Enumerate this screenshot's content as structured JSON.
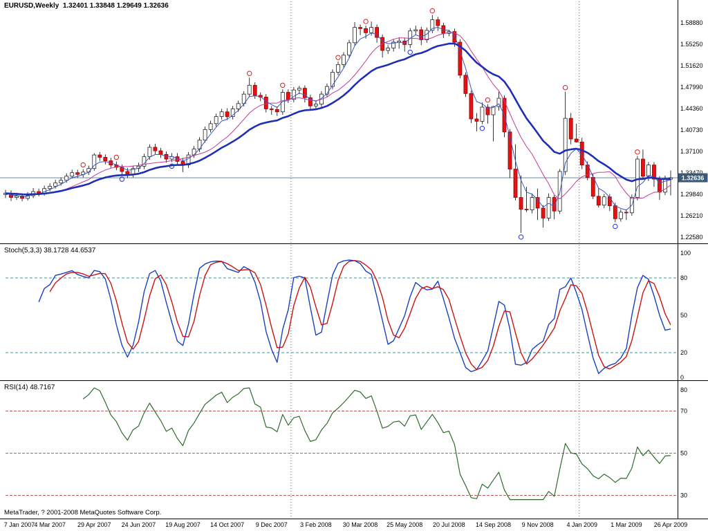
{
  "panels": {
    "main": {
      "title": "EURUSD,Weekly  1.32401 1.33848 1.29649 1.32636"
    },
    "stoch": {
      "title": "Stoch(5,3,3) 38.1728 44.6537"
    },
    "rsi": {
      "title": "RSI(14) 48.7167"
    }
  },
  "footer": {
    "copyright": "MetaTrader, ? 2001-2008 MetaQuotes Software Corp."
  },
  "colors": {
    "bull_body": "#ffffff",
    "bull_outline": "#222222",
    "bear_body": "#e81010",
    "bear_outline": "#990000",
    "wick": "#000000",
    "current_price_line": "#5b8cae",
    "price_badge_bg": "#3a5a78",
    "price_badge_text": "#ffffff",
    "separator": "#666666",
    "stoch_main": "#1a3fc4",
    "stoch_signal": "#cc1111",
    "stoch_level": "#2e9e9e",
    "rsi_line": "#2d6b2d",
    "rsi_level": "#bb6060"
  },
  "chart_data": [
    {
      "type": "candlestick",
      "title": "EURUSD,Weekly",
      "current_bar": {
        "open": 1.32401,
        "high": 1.33848,
        "low": 1.29649,
        "close": 1.32636
      },
      "ylim": [
        1.2152,
        1.6274
      ],
      "y_tick_labels": [
        "1.58880",
        "1.55250",
        "1.51620",
        "1.47990",
        "1.44360",
        "1.40730",
        "1.37100",
        "1.33470",
        "1.29840",
        "1.26210",
        "1.22580"
      ],
      "x_tick_labels": [
        "7 Jan 2007",
        "4 Mar 2007",
        "29 Apr 2007",
        "24 Jun 2007",
        "19 Aug 2007",
        "14 Oct 2007",
        "9 Dec 2007",
        "3 Feb 2008",
        "30 Mar 2008",
        "25 May 2008",
        "20 Jul 2008",
        "14 Sep 2008",
        "9 Nov 2008",
        "4 Jan 2009",
        "1 Mar 2009",
        "26 Apr 2009"
      ],
      "current_price_line": {
        "value": 1.32636,
        "label": "1.32636"
      },
      "separators_at_index": [
        51.5,
        103.5
      ],
      "overlays": [
        {
          "name": "ma-fast",
          "type": "ema",
          "period": 4,
          "color": "#3a56c8",
          "width": 1
        },
        {
          "name": "ma-mid",
          "type": "sma",
          "period": 10,
          "color": "#c23a96",
          "width": 1
        },
        {
          "name": "ma-slow",
          "type": "ema",
          "period": 21,
          "color": "#1e2fb5",
          "width": 2.6
        }
      ],
      "markers": {
        "above": [
          14,
          20,
          44,
          50,
          60,
          65,
          77,
          87,
          101,
          114
        ],
        "below": [
          21,
          30,
          73,
          86,
          93,
          110
        ],
        "above_color": "#cc2222",
        "below_color": "#2233cc"
      },
      "candles": [
        [
          1.298,
          1.306,
          1.292,
          1.3
        ],
        [
          1.3,
          1.305,
          1.287,
          1.293
        ],
        [
          1.293,
          1.301,
          1.289,
          1.2955
        ],
        [
          1.2955,
          1.3,
          1.2865,
          1.2915
        ],
        [
          1.2915,
          1.302,
          1.288,
          1.296
        ],
        [
          1.296,
          1.309,
          1.292,
          1.303
        ],
        [
          1.303,
          1.308,
          1.295,
          1.3
        ],
        [
          1.3,
          1.313,
          1.296,
          1.308
        ],
        [
          1.308,
          1.317,
          1.303,
          1.312
        ],
        [
          1.312,
          1.323,
          1.308,
          1.3175
        ],
        [
          1.3175,
          1.327,
          1.313,
          1.322
        ],
        [
          1.322,
          1.334,
          1.318,
          1.329
        ],
        [
          1.329,
          1.34,
          1.325,
          1.335
        ],
        [
          1.335,
          1.34,
          1.326,
          1.332
        ],
        [
          1.332,
          1.341,
          1.327,
          1.336
        ],
        [
          1.336,
          1.347,
          1.331,
          1.342
        ],
        [
          1.342,
          1.368,
          1.338,
          1.365
        ],
        [
          1.365,
          1.37,
          1.355,
          1.361
        ],
        [
          1.361,
          1.366,
          1.349,
          1.355
        ],
        [
          1.355,
          1.36,
          1.343,
          1.348
        ],
        [
          1.348,
          1.354,
          1.339,
          1.344
        ],
        [
          1.344,
          1.349,
          1.331,
          1.337
        ],
        [
          1.337,
          1.343,
          1.326,
          1.332
        ],
        [
          1.332,
          1.347,
          1.327,
          1.342
        ],
        [
          1.342,
          1.352,
          1.336,
          1.346
        ],
        [
          1.346,
          1.367,
          1.341,
          1.362
        ],
        [
          1.362,
          1.383,
          1.357,
          1.378
        ],
        [
          1.378,
          1.384,
          1.366,
          1.372
        ],
        [
          1.372,
          1.377,
          1.36,
          1.366
        ],
        [
          1.366,
          1.371,
          1.352,
          1.358
        ],
        [
          1.358,
          1.368,
          1.353,
          1.362
        ],
        [
          1.362,
          1.368,
          1.348,
          1.354
        ],
        [
          1.354,
          1.36,
          1.336,
          1.348
        ],
        [
          1.348,
          1.37,
          1.343,
          1.365
        ],
        [
          1.365,
          1.38,
          1.36,
          1.375
        ],
        [
          1.375,
          1.395,
          1.37,
          1.39
        ],
        [
          1.39,
          1.413,
          1.386,
          1.408
        ],
        [
          1.408,
          1.423,
          1.403,
          1.418
        ],
        [
          1.418,
          1.435,
          1.413,
          1.43
        ],
        [
          1.43,
          1.443,
          1.425,
          1.438
        ],
        [
          1.438,
          1.444,
          1.424,
          1.43
        ],
        [
          1.43,
          1.448,
          1.425,
          1.443
        ],
        [
          1.443,
          1.457,
          1.438,
          1.452
        ],
        [
          1.452,
          1.473,
          1.447,
          1.468
        ],
        [
          1.468,
          1.496,
          1.463,
          1.483
        ],
        [
          1.483,
          1.488,
          1.46,
          1.466
        ],
        [
          1.466,
          1.471,
          1.456,
          1.463
        ],
        [
          1.463,
          1.468,
          1.437,
          1.443
        ],
        [
          1.443,
          1.448,
          1.433,
          1.442
        ],
        [
          1.442,
          1.447,
          1.431,
          1.438
        ],
        [
          1.438,
          1.476,
          1.433,
          1.471
        ],
        [
          1.471,
          1.476,
          1.453,
          1.459
        ],
        [
          1.459,
          1.48,
          1.454,
          1.475
        ],
        [
          1.475,
          1.482,
          1.468,
          1.478
        ],
        [
          1.478,
          1.483,
          1.454,
          1.462
        ],
        [
          1.462,
          1.467,
          1.44,
          1.448
        ],
        [
          1.448,
          1.456,
          1.443,
          1.451
        ],
        [
          1.451,
          1.473,
          1.446,
          1.468
        ],
        [
          1.468,
          1.486,
          1.463,
          1.481
        ],
        [
          1.481,
          1.51,
          1.476,
          1.505
        ],
        [
          1.505,
          1.523,
          1.5,
          1.518
        ],
        [
          1.518,
          1.539,
          1.513,
          1.534
        ],
        [
          1.534,
          1.56,
          1.529,
          1.555
        ],
        [
          1.555,
          1.59,
          1.55,
          1.581
        ],
        [
          1.581,
          1.586,
          1.568,
          1.579
        ],
        [
          1.579,
          1.584,
          1.562,
          1.572
        ],
        [
          1.572,
          1.591,
          1.567,
          1.581
        ],
        [
          1.581,
          1.586,
          1.555,
          1.564
        ],
        [
          1.564,
          1.569,
          1.53,
          1.542
        ],
        [
          1.542,
          1.551,
          1.536,
          1.546
        ],
        [
          1.546,
          1.561,
          1.54,
          1.556
        ],
        [
          1.556,
          1.564,
          1.545,
          1.558
        ],
        [
          1.558,
          1.563,
          1.54,
          1.552
        ],
        [
          1.552,
          1.58,
          1.546,
          1.575
        ],
        [
          1.575,
          1.584,
          1.568,
          1.577
        ],
        [
          1.577,
          1.582,
          1.551,
          1.56
        ],
        [
          1.56,
          1.581,
          1.555,
          1.576
        ],
        [
          1.576,
          1.602,
          1.571,
          1.594
        ],
        [
          1.594,
          1.599,
          1.575,
          1.584
        ],
        [
          1.584,
          1.589,
          1.563,
          1.571
        ],
        [
          1.571,
          1.577,
          1.566,
          1.574
        ],
        [
          1.574,
          1.579,
          1.548,
          1.556
        ],
        [
          1.556,
          1.561,
          1.495,
          1.5
        ],
        [
          1.5,
          1.505,
          1.463,
          1.469
        ],
        [
          1.469,
          1.474,
          1.419,
          1.426
        ],
        [
          1.426,
          1.436,
          1.405,
          1.422
        ],
        [
          1.422,
          1.454,
          1.417,
          1.446
        ],
        [
          1.446,
          1.451,
          1.418,
          1.433
        ],
        [
          1.433,
          1.448,
          1.388,
          1.447
        ],
        [
          1.447,
          1.472,
          1.44,
          1.461
        ],
        [
          1.461,
          1.466,
          1.395,
          1.404
        ],
        [
          1.404,
          1.409,
          1.326,
          1.341
        ],
        [
          1.341,
          1.383,
          1.288,
          1.293
        ],
        [
          1.293,
          1.33,
          1.233,
          1.273
        ],
        [
          1.273,
          1.311,
          1.268,
          1.272
        ],
        [
          1.272,
          1.3,
          1.266,
          1.293
        ],
        [
          1.293,
          1.308,
          1.255,
          1.275
        ],
        [
          1.275,
          1.28,
          1.242,
          1.258
        ],
        [
          1.258,
          1.3,
          1.253,
          1.293
        ],
        [
          1.293,
          1.298,
          1.256,
          1.27
        ],
        [
          1.27,
          1.341,
          1.265,
          1.337
        ],
        [
          1.337,
          1.472,
          1.331,
          1.427
        ],
        [
          1.427,
          1.436,
          1.383,
          1.392
        ],
        [
          1.392,
          1.418,
          1.386,
          1.387
        ],
        [
          1.387,
          1.394,
          1.341,
          1.348
        ],
        [
          1.348,
          1.354,
          1.322,
          1.327
        ],
        [
          1.327,
          1.333,
          1.29,
          1.295
        ],
        [
          1.295,
          1.309,
          1.276,
          1.28
        ],
        [
          1.28,
          1.299,
          1.275,
          1.294
        ],
        [
          1.294,
          1.299,
          1.27,
          1.279
        ],
        [
          1.279,
          1.284,
          1.251,
          1.257
        ],
        [
          1.257,
          1.273,
          1.252,
          1.268
        ],
        [
          1.268,
          1.273,
          1.255,
          1.267
        ],
        [
          1.267,
          1.298,
          1.262,
          1.293
        ],
        [
          1.293,
          1.363,
          1.288,
          1.358
        ],
        [
          1.358,
          1.374,
          1.324,
          1.329
        ],
        [
          1.329,
          1.353,
          1.321,
          1.348
        ],
        [
          1.348,
          1.353,
          1.311,
          1.324
        ],
        [
          1.324,
          1.329,
          1.289,
          1.302
        ],
        [
          1.302,
          1.33,
          1.297,
          1.325
        ],
        [
          1.32401,
          1.33848,
          1.29649,
          1.32636
        ]
      ]
    },
    {
      "type": "line",
      "name": "Stochastic Oscillator",
      "params": [
        5,
        3,
        3
      ],
      "displayed_values": [
        38.1728,
        44.6537
      ],
      "levels": [
        20,
        80
      ],
      "ylim": [
        0,
        100
      ],
      "y_tick_labels": [
        "100",
        "80",
        "50",
        "20",
        "0"
      ],
      "series": [
        {
          "name": "%K",
          "color": "#1a3fc4",
          "derived": "stochastic(5,3,3) of candles"
        },
        {
          "name": "%D",
          "color": "#cc1111",
          "derived": "sma(3) of %K"
        }
      ]
    },
    {
      "type": "line",
      "name": "RSI",
      "params": [
        14
      ],
      "displayed_value": 48.7167,
      "levels": [
        30,
        50,
        70
      ],
      "ylim": [
        25,
        83
      ],
      "y_tick_labels": [
        "80",
        "70",
        "50",
        "30"
      ],
      "series": [
        {
          "name": "RSI(14)",
          "color": "#2d6b2d",
          "derived": "rsi(14) of candle closes"
        }
      ]
    }
  ]
}
